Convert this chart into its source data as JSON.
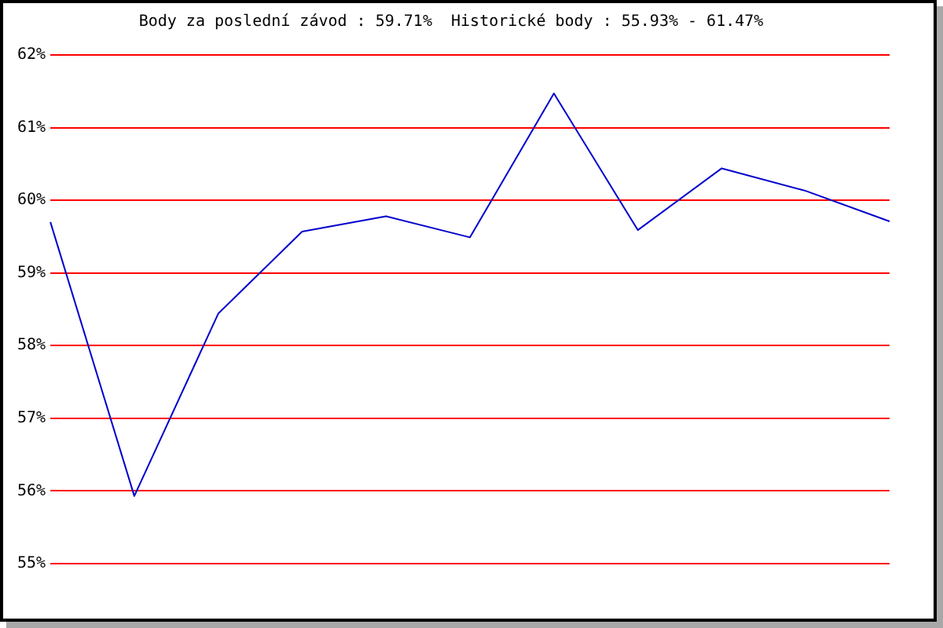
{
  "chart_data": {
    "type": "line",
    "title": "Body za poslední závod : 59.71%  Historické body : 55.93% - 61.47%",
    "categories": [
      null,
      null,
      null,
      null,
      null,
      null,
      null,
      null,
      null,
      null,
      null
    ],
    "series": [
      {
        "color": "#0000cc",
        "values": [
          59.7,
          55.93,
          58.44,
          59.57,
          59.78,
          59.49,
          61.47,
          59.59,
          60.44,
          60.13,
          59.71
        ]
      }
    ],
    "ylim": [
      55,
      62
    ],
    "yticks": [
      {
        "value": 55,
        "label": "55%"
      },
      {
        "value": 56,
        "label": "56%"
      },
      {
        "value": 57,
        "label": "57%"
      },
      {
        "value": 58,
        "label": "58%"
      },
      {
        "value": 59,
        "label": "59%"
      },
      {
        "value": 60,
        "label": "60%"
      },
      {
        "value": 61,
        "label": "61%"
      },
      {
        "value": 62,
        "label": "62%"
      }
    ],
    "grid": "y",
    "tick_labels": "y",
    "marker": "none"
  }
}
